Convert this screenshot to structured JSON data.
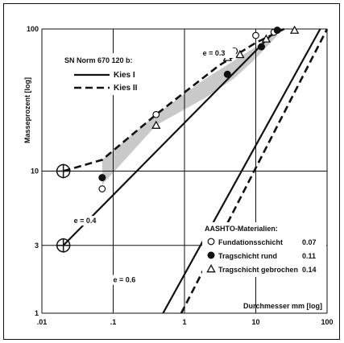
{
  "chart_data": {
    "type": "line",
    "xscale": "log",
    "yscale": "log",
    "xlim": [
      0.01,
      100
    ],
    "ylim": [
      1,
      100
    ],
    "xticks": [
      ".01",
      ".1",
      "1",
      "10",
      "100"
    ],
    "yticks": [
      "1",
      "3",
      "10",
      "100"
    ],
    "xlabel": "Durchmesser mm [log]",
    "ylabel": "Masseprozent [log]",
    "grid": true,
    "legend_title": "SN Norm 670 120 b:",
    "series": [
      {
        "name": "Kies I",
        "style": "solid",
        "x": [
          0.02,
          20
        ],
        "y": [
          3,
          100
        ]
      },
      {
        "name": "Kies I",
        "style": "solid",
        "x": [
          0.5,
          80
        ],
        "y": [
          1,
          100
        ]
      },
      {
        "name": "Kies II",
        "style": "dashed",
        "x": [
          0.02,
          0.07,
          0.4,
          3,
          10,
          25
        ],
        "y": [
          10,
          12,
          25,
          55,
          80,
          100
        ]
      },
      {
        "name": "Kies II",
        "style": "dashed",
        "x": [
          0.9,
          100
        ],
        "y": [
          1,
          100
        ]
      }
    ],
    "shaded_band": {
      "upper": {
        "x": [
          0.07,
          0.4,
          2,
          5,
          10,
          20
        ],
        "y": [
          12,
          25,
          45,
          60,
          75,
          95
        ]
      },
      "lower": {
        "x": [
          0.07,
          0.4,
          2,
          5,
          10,
          20
        ],
        "y": [
          8,
          21,
          33,
          45,
          62,
          90
        ]
      }
    },
    "annotations": [
      {
        "text": "e = 0.3",
        "x": 1.8,
        "y": 65
      },
      {
        "text": "e = 0.4",
        "x": 0.028,
        "y": 4.3
      },
      {
        "text": "e = 0.6",
        "x": 0.1,
        "y": 1.65
      }
    ],
    "circled_points": [
      {
        "x": 0.02,
        "y": 10
      },
      {
        "x": 0.02,
        "y": 3
      }
    ],
    "aashto": {
      "title": "AASHTO-Materialien:",
      "materials": [
        {
          "name": "Fundationsschicht",
          "value": "0.07",
          "marker": "open-circle",
          "x": [
            0.07,
            0.4,
            5,
            10,
            18
          ],
          "y": [
            7.5,
            25,
            70,
            90,
            95
          ]
        },
        {
          "name": "Tragschicht rund",
          "value": "0.11",
          "marker": "filled-circle",
          "x": [
            0.07,
            4,
            12,
            20
          ],
          "y": [
            9,
            48,
            75,
            98
          ]
        },
        {
          "name": "Tragschicht gebrochen",
          "value": "0.14",
          "marker": "triangle",
          "x": [
            0.4,
            4,
            6,
            14,
            35
          ],
          "y": [
            21,
            63,
            66,
            85,
            98
          ]
        }
      ]
    }
  }
}
